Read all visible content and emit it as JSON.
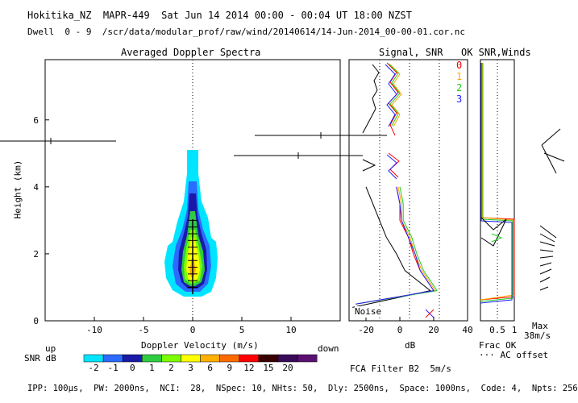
{
  "header": {
    "line1": "Hokitika_NZ  MAPR-449  Sat Jun 14 2014 00:00 - 00:04 UT 18:00 NZST",
    "line2": "Dwell  0 - 9  /scr/data/modular_prof/raw/wind/20140614/14-Jun-2014_00-00-01.cor.nc"
  },
  "panels": {
    "spectra_title": "Averaged Doppler Spectra",
    "signal_title": "Signal, SNR",
    "ok_title": "OK SNR,Winds"
  },
  "legend_beams": [
    "0",
    "1",
    "2",
    "3"
  ],
  "colors": {
    "beam0": "#ff0000",
    "beam1": "#ffa500",
    "beam2": "#22cc22",
    "beam3": "#2020ff",
    "beam_noise": "#000000"
  },
  "labels": {
    "noise": "Noise",
    "frac_ok": "Frac OK",
    "ac_offset": "··· AC offset",
    "max": "Max",
    "max_speed": "38m/s",
    "up": "up",
    "down": "down",
    "snr_db": "SNR dB",
    "fca_filter": "FCA Filter B2  5m/s",
    "footer": "IPP: 100μs,  PW: 2000ns,  NCI:  28,  NSpec: 10, NHts: 50,  Dly: 2500ns,  Space: 1000ns,  Code: 4,  Npts: 256"
  },
  "colorbar": {
    "labels": [
      "-2",
      "-1",
      "0",
      "1",
      "2",
      "3",
      "6",
      "9",
      "12",
      "15",
      "20"
    ],
    "colors": [
      "#00e5ff",
      "#2b6bff",
      "#1a1aa8",
      "#2ecc40",
      "#7cfc00",
      "#ffff00",
      "#ffb000",
      "#ff6a00",
      "#ff0000",
      "#3a0000",
      "#3a0a5a",
      "#5a1070"
    ]
  },
  "chart_data": [
    {
      "type": "heatmap",
      "title": "Averaged Doppler Spectra",
      "xlabel": "Doppler Velocity (m/s)",
      "ylabel": "Height (km)",
      "xlim": [
        -15,
        15
      ],
      "ylim": [
        0,
        7.8
      ],
      "xticks": [
        "-10",
        "-5",
        "0",
        "5",
        "10"
      ],
      "yticks": [
        "0",
        "2",
        "4",
        "6"
      ],
      "spectral_peak_height_km": [
        1.0,
        1.2,
        1.4,
        1.6,
        1.8,
        2.0,
        2.2,
        2.4,
        2.6,
        2.8,
        3.0
      ],
      "isolated_points": [
        {
          "velocity": -14.5,
          "height": 5.3
        },
        {
          "velocity": 13.2,
          "height": 5.5
        },
        {
          "velocity": 10.8,
          "height": 4.9
        }
      ]
    },
    {
      "type": "line",
      "title": "Signal, SNR",
      "xlabel": "dB",
      "xlim": [
        -30,
        40
      ],
      "ylim": [
        0,
        7.8
      ],
      "xticks": [
        "-20",
        "0",
        "20",
        "40"
      ],
      "series": [
        {
          "name": "Noise",
          "height": [
            0.4,
            0.9,
            1.5,
            2.0,
            2.5,
            3.0,
            3.5,
            4.0
          ],
          "db": [
            -28,
            18,
            3,
            -2,
            -8,
            -12,
            -16,
            -20
          ]
        },
        {
          "name": "0",
          "height": [
            0.5,
            0.9,
            1.5,
            2.0,
            2.5,
            3.0,
            3.5,
            4.0
          ],
          "db": [
            -26,
            20,
            12,
            8,
            5,
            0,
            0,
            -2
          ]
        },
        {
          "name": "1",
          "height": [
            0.5,
            0.9,
            1.5,
            2.0,
            2.5,
            3.0,
            3.5,
            4.0
          ],
          "db": [
            -26,
            21,
            13,
            9,
            6,
            1,
            1,
            -1
          ]
        },
        {
          "name": "2",
          "height": [
            0.5,
            0.9,
            1.5,
            2.0,
            2.5,
            3.0,
            3.5,
            4.0
          ],
          "db": [
            -26,
            22,
            14,
            10,
            7,
            2,
            2,
            0
          ]
        },
        {
          "name": "3",
          "height": [
            0.5,
            0.9,
            1.5,
            2.0,
            2.5,
            3.0,
            3.5,
            4.0
          ],
          "db": [
            -26,
            20,
            12,
            9,
            5,
            1,
            0,
            -2
          ]
        }
      ]
    },
    {
      "type": "line",
      "title": "OK SNR,Winds",
      "xlabel": "Frac OK",
      "xlim": [
        0,
        1
      ],
      "ylim": [
        0,
        7.8
      ],
      "xticks": [
        "0.5",
        "1"
      ],
      "wind_max_speed": "38m/s"
    }
  ]
}
